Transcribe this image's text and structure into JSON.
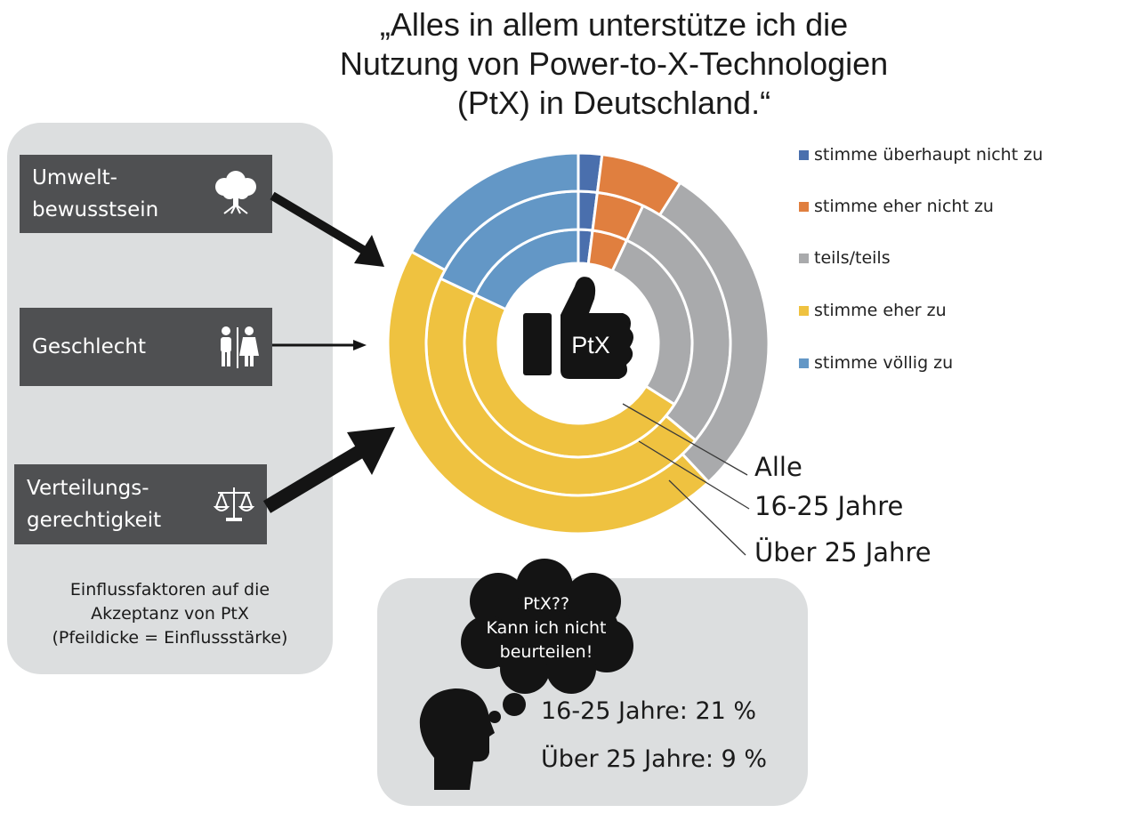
{
  "title_lines": [
    "„Alles in allem unterstütze ich die",
    "Nutzung von Power-to-X-Technologien",
    "(PtX) in Deutschland.“"
  ],
  "factors": [
    {
      "label_lines": [
        "Umwelt-",
        "bewusstsein"
      ],
      "icon": "tree-icon",
      "influence": "strong"
    },
    {
      "label_lines": [
        "Geschlecht"
      ],
      "icon": "gender-icon",
      "influence": "weak"
    },
    {
      "label_lines": [
        "Verteilungs-",
        "gerechtigkeit"
      ],
      "icon": "scales-icon",
      "influence": "strongest"
    }
  ],
  "factors_note_lines": [
    "Einflussfaktoren auf die",
    "Akzeptanz von  PtX",
    "(Pfeildicke = Einflussstärke)"
  ],
  "center_label": "PtX",
  "center_icon": "thumbs-up-icon",
  "ring_labels": [
    "Alle",
    "16-25 Jahre",
    "Über 25 Jahre"
  ],
  "thought_bubble_lines": [
    "PtX??",
    "Kann ich nicht",
    "beurteilen!"
  ],
  "head_icon": "head-silhouette-icon",
  "stats": [
    {
      "text": "16-25 Jahre: 21 %"
    },
    {
      "text": "Über 25 Jahre: 9 %"
    }
  ],
  "colors": {
    "panel_bg": "#dcdedf",
    "factor_box": "#4f5052",
    "stimme_ueberhaupt_nicht_zu": "#4a6fad",
    "stimme_eher_nicht_zu": "#e07f3f",
    "teils_teils": "#a9aaac",
    "stimme_eher_zu": "#efc240",
    "stimme_voellig_zu": "#6397c6"
  },
  "chart_data": {
    "type": "donut",
    "categories": [
      "stimme überhaupt nicht zu",
      "stimme eher nicht zu",
      "teils/teils",
      "stimme eher zu",
      "stimme völlig zu"
    ],
    "series": [
      {
        "name": "Alle",
        "values": [
          2,
          5,
          27,
          48,
          18
        ]
      },
      {
        "name": "16-25 Jahre",
        "values": [
          2,
          5,
          29,
          46,
          18
        ]
      },
      {
        "name": "Über 25 Jahre",
        "values": [
          2,
          7,
          29,
          45,
          17
        ]
      }
    ],
    "unit": "%",
    "legend_position": "right",
    "ring_order": "inner-to-outer"
  }
}
